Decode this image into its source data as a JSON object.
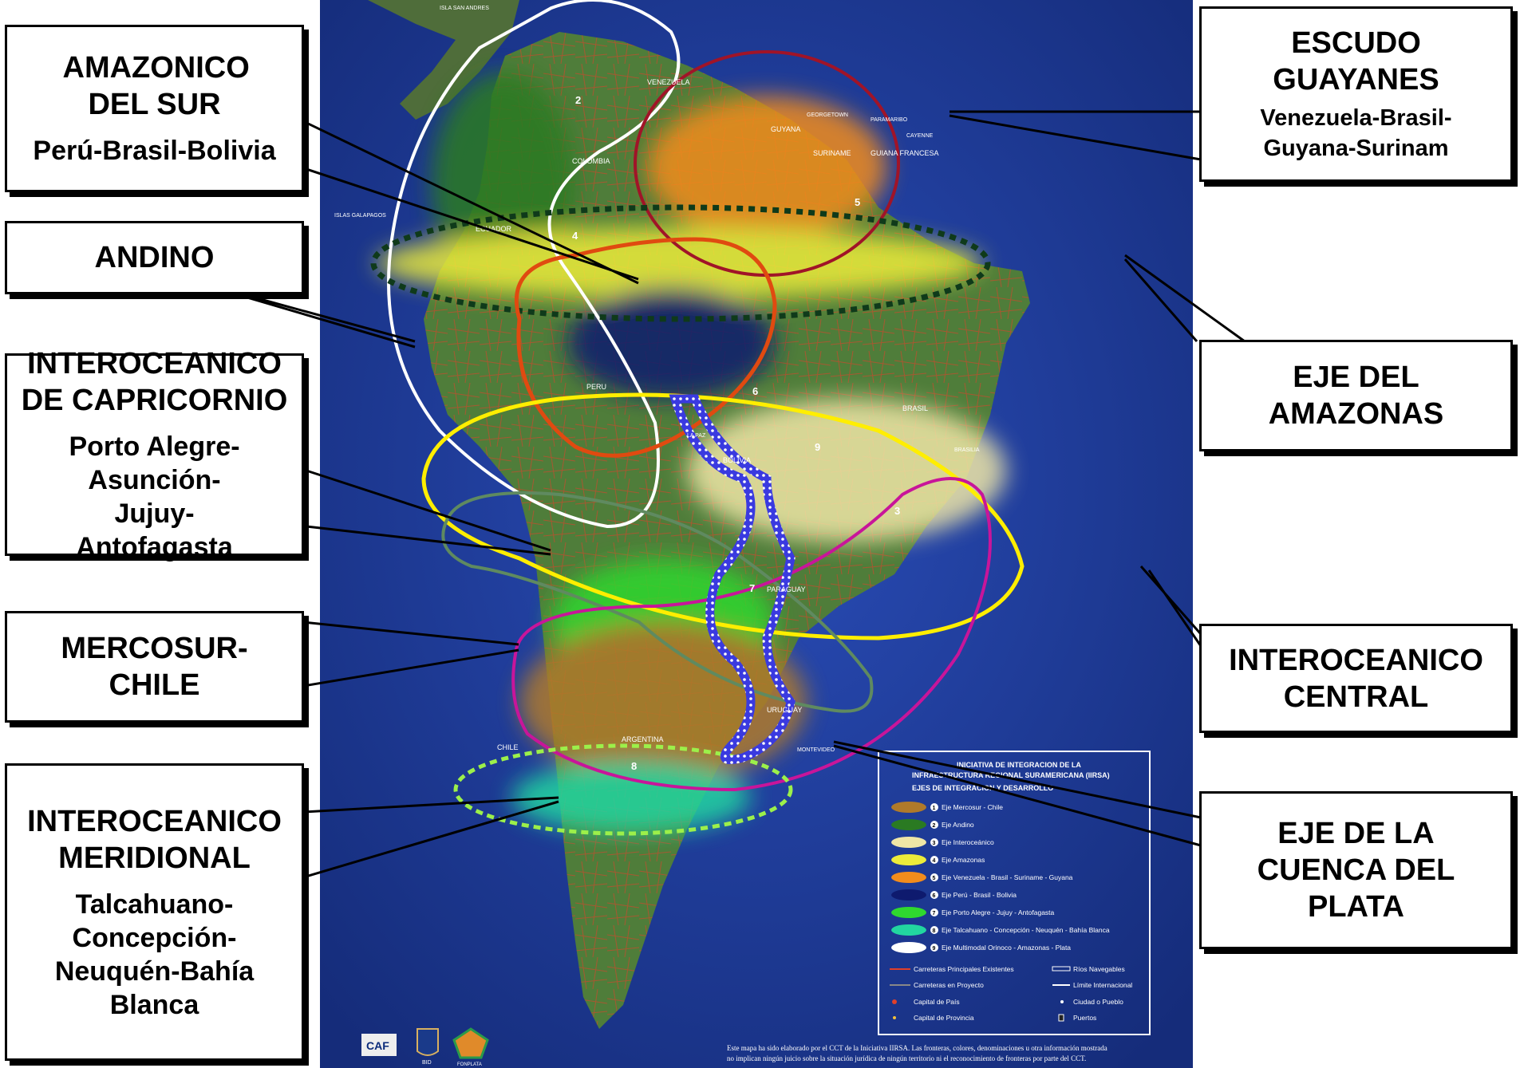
{
  "callouts": {
    "amazonico_sur": {
      "title": "AMAZONICO DEL SUR",
      "subtitle": "Perú-Brasil-Bolivia"
    },
    "andino": {
      "title": "ANDINO"
    },
    "capricornio": {
      "title": "INTEROCEANICO DE CAPRICORNIO",
      "subtitle": "Porto Alegre-Asunción-Jujuy-Antofagasta"
    },
    "mercosur": {
      "title": "MERCOSUR-CHILE"
    },
    "meridional": {
      "title": "INTEROCEANICO MERIDIONAL",
      "subtitle": "Talcahuano-Concepción-Neuquén-Bahía Blanca"
    },
    "escudo": {
      "title": "ESCUDO GUAYANES",
      "subtitle": "Venezuela-Brasil-Guyana-Surinam"
    },
    "amazonas": {
      "title": "EJE DEL AMAZONAS"
    },
    "central": {
      "title": "INTEROCEANICO CENTRAL"
    },
    "plata": {
      "title": "EJE DE LA CUENCA DEL PLATA"
    }
  },
  "map": {
    "countries": {
      "venezuela": "VENEZUELA",
      "colombia": "COLOMBIA",
      "guyana": "GUYANA",
      "suriname": "SURINAME",
      "guiana": "GUIANA FRANCESA",
      "ecuador": "ECUADOR",
      "peru": "PERU",
      "bolivia": "BOLIVIA",
      "brasil": "BRASIL",
      "paraguay": "PARAGUAY",
      "chile": "CHILE",
      "argentina": "ARGENTINA",
      "uruguay": "URUGUAY"
    },
    "cities": {
      "georgetown": "GEORGETOWN",
      "paramaribo": "PARAMARIBO",
      "cayenne": "CAYENNE",
      "lapaz": "LA PAZ",
      "brasilia": "BRASILIA",
      "montevideo": "MONTEVIDEO",
      "galapagos": "ISLAS GALAPAGOS",
      "sanandres": "ISLA SAN ANDRES"
    },
    "axis_numbers": {
      "n2": "2",
      "n4": "4",
      "n5": "5",
      "n6": "6",
      "n9": "9",
      "n3": "3",
      "n7": "7",
      "n8": "8"
    },
    "legend": {
      "header1": "INICIATIVA DE INTEGRACION DE LA",
      "header2": "INFRAESTRUCTURA REGIONAL SURAMERICANA (IIRSA)",
      "header3": "EJES DE INTEGRACION Y DESARROLLO",
      "items": [
        {
          "num": "1",
          "label": "Eje Mercosur - Chile",
          "color": "#b07a2a"
        },
        {
          "num": "2",
          "label": "Eje Andino",
          "color": "#2a7a22"
        },
        {
          "num": "3",
          "label": "Eje Interoceánico",
          "color": "#efe6a6"
        },
        {
          "num": "4",
          "label": "Eje Amazonas",
          "color": "#ecec3a"
        },
        {
          "num": "5",
          "label": "Eje Venezuela - Brasil - Suriname - Guyana",
          "color": "#f28c1c"
        },
        {
          "num": "6",
          "label": "Eje Perú - Brasil - Bolivia",
          "color": "#0e1a6e"
        },
        {
          "num": "7",
          "label": "Eje Porto Alegre - Jujuy - Antofagasta",
          "color": "#2fd82f"
        },
        {
          "num": "8",
          "label": "Eje Talcahuano - Concepción - Neuquén - Bahía Blanca",
          "color": "#22d6a0"
        },
        {
          "num": "9",
          "label": "Eje Multimodal Orinoco - Amazonas - Plata",
          "color": "#ffffff"
        }
      ],
      "keys": {
        "k1": "Carreteras Principales Existentes",
        "k2": "Ríos Navegables",
        "k3": "Carreteras en Proyecto",
        "k4": "Límite Internacional",
        "k5": "Capital de País",
        "k6": "Ciudad o Pueblo",
        "k7": "Capital de Provincia",
        "k8": "Puertos"
      }
    },
    "logos": {
      "caf": "CAF",
      "bid": "BID",
      "fonplata": "FONPLATA"
    },
    "disclaimer1": "Este mapa ha sido elaborado por el CCT de la Iniciativa IIRSA. Las fronteras, colores, denominaciones u otra información mostrada",
    "disclaimer2": "no implican ningún juicio sobre la situación jurídica de ningún territorio ni el reconocimiento de fronteras por parte del CCT."
  },
  "colors": {
    "ocean": "#1d3a9a",
    "land": "#4f7d3a",
    "road": "#e0402a",
    "ring_white": "#ffffff",
    "ring_darkred": "#a01428",
    "ring_orange": "#e04a10",
    "ring_yellow": "#ffee00",
    "ring_grey_green": "#5f8a60",
    "ring_magenta": "#c8159a",
    "ring_dashed_green": "#0f3a1a",
    "ring_light_green": "#9cf04a",
    "plata_axis": "#3a3ae0"
  }
}
